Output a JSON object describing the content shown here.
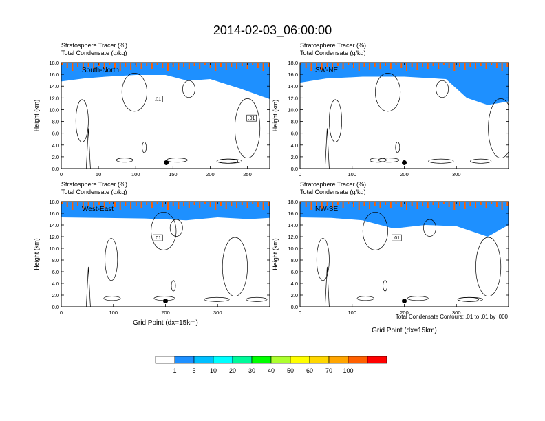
{
  "figure": {
    "title": "2014-02-03_06:00:00",
    "footer_note": "Total Condensate Contours: .01 to .01 by .000"
  },
  "panel_header": {
    "line1": "Stratosphere Tracer   (%)",
    "line2": "Total Condensate   (g/kg)"
  },
  "colorbar": {
    "colors": [
      "#ffffff",
      "#1e90ff",
      "#00bfff",
      "#00ffff",
      "#00fa9a",
      "#00ff00",
      "#adff2f",
      "#ffff00",
      "#ffd700",
      "#ffa500",
      "#ff6000",
      "#ff0000"
    ],
    "labels": [
      "1",
      "5",
      "10",
      "20",
      "30",
      "40",
      "50",
      "60",
      "70",
      "100"
    ]
  },
  "chart_data": [
    {
      "type": "heatmap",
      "panel": "top-left",
      "cross_section": "South-North",
      "ylabel": "Height (km)",
      "xlabel": "",
      "xlim": [
        0,
        280
      ],
      "xticks": [
        0,
        50,
        100,
        150,
        200,
        250
      ],
      "ylim": [
        0,
        18
      ],
      "yticks": [
        "0.0",
        "2.0",
        "4.0",
        "6.0",
        "8.0",
        "10.0",
        "12.0",
        "14.0",
        "16.0",
        "18.0"
      ],
      "contour_labels": [
        ".01",
        ".01"
      ],
      "marker": {
        "x": 141,
        "y": 1.0
      },
      "tracer_boundary_height_km": [
        {
          "x": 0,
          "y": 14.8
        },
        {
          "x": 30,
          "y": 15.3
        },
        {
          "x": 60,
          "y": 15.6
        },
        {
          "x": 100,
          "y": 15.9
        },
        {
          "x": 140,
          "y": 15.9
        },
        {
          "x": 170,
          "y": 14.9
        },
        {
          "x": 200,
          "y": 15.2
        },
        {
          "x": 240,
          "y": 13.6
        },
        {
          "x": 280,
          "y": 11.8
        }
      ]
    },
    {
      "type": "heatmap",
      "panel": "top-right",
      "cross_section": "SW-NE",
      "ylabel": "Height (km)",
      "xlabel": "",
      "xlim": [
        0,
        400
      ],
      "xticks": [
        0,
        100,
        200,
        300
      ],
      "ylim": [
        0,
        18
      ],
      "yticks": [
        "0.0",
        "2.0",
        "4.0",
        "6.0",
        "8.0",
        "10.0",
        "12.0",
        "14.0",
        "16.0",
        "18.0"
      ],
      "contour_labels": [],
      "marker": {
        "x": 200,
        "y": 1.0
      },
      "tracer_boundary_height_km": [
        {
          "x": 0,
          "y": 14.6
        },
        {
          "x": 50,
          "y": 15.3
        },
        {
          "x": 120,
          "y": 15.6
        },
        {
          "x": 200,
          "y": 15.6
        },
        {
          "x": 280,
          "y": 15.2
        },
        {
          "x": 320,
          "y": 12.0
        },
        {
          "x": 360,
          "y": 10.8
        },
        {
          "x": 400,
          "y": 11.4
        }
      ]
    },
    {
      "type": "heatmap",
      "panel": "bottom-left",
      "cross_section": "West-East",
      "ylabel": "Height (km)",
      "xlabel": "Grid Point (dx=15km)",
      "xlim": [
        0,
        400
      ],
      "xticks": [
        0,
        100,
        200,
        300
      ],
      "ylim": [
        0,
        18
      ],
      "yticks": [
        "0.0",
        "2.0",
        "4.0",
        "6.0",
        "8.0",
        "10.0",
        "12.0",
        "14.0",
        "16.0",
        "18.0"
      ],
      "contour_labels": [
        ".01"
      ],
      "marker": {
        "x": 200,
        "y": 1.0
      },
      "tracer_boundary_height_km": [
        {
          "x": 0,
          "y": 15.3
        },
        {
          "x": 80,
          "y": 15.2
        },
        {
          "x": 160,
          "y": 15.1
        },
        {
          "x": 240,
          "y": 14.8
        },
        {
          "x": 300,
          "y": 15.3
        },
        {
          "x": 360,
          "y": 15.0
        },
        {
          "x": 400,
          "y": 15.2
        }
      ]
    },
    {
      "type": "heatmap",
      "panel": "bottom-right",
      "cross_section": "NW-SE",
      "ylabel": "Height (km)",
      "xlabel": "Grid Point (dx=15km)",
      "xlim": [
        0,
        400
      ],
      "xticks": [
        0,
        100,
        200,
        300
      ],
      "ylim": [
        0,
        18
      ],
      "yticks": [
        "0.0",
        "2.0",
        "4.0",
        "6.0",
        "8.0",
        "10.0",
        "12.0",
        "14.0",
        "16.0",
        "18.0"
      ],
      "contour_labels": [
        ".01"
      ],
      "marker": {
        "x": 200,
        "y": 1.0
      },
      "tracer_boundary_height_km": [
        {
          "x": 0,
          "y": 15.3
        },
        {
          "x": 60,
          "y": 15.2
        },
        {
          "x": 120,
          "y": 14.8
        },
        {
          "x": 180,
          "y": 13.4
        },
        {
          "x": 240,
          "y": 14.0
        },
        {
          "x": 300,
          "y": 13.8
        },
        {
          "x": 360,
          "y": 12.0
        },
        {
          "x": 400,
          "y": 14.0
        }
      ]
    }
  ]
}
